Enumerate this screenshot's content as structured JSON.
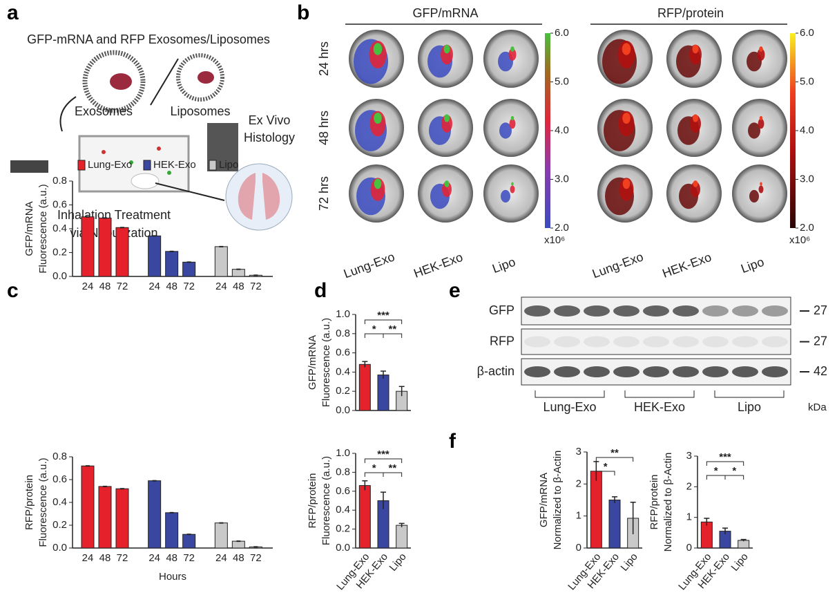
{
  "panel_labels": [
    "a",
    "b",
    "c",
    "d",
    "e",
    "f"
  ],
  "panel_a": {
    "title": "GFP-mRNA and RFP Exosomes/Liposomes",
    "exosomes": "Exosomes",
    "liposomes": "Liposomes",
    "histology": [
      "Ex Vivo",
      "Histology"
    ],
    "treatment": [
      "Inhalation Treatment",
      "via Nebulization"
    ]
  },
  "panel_b": {
    "groups": [
      "GFP/mRNA",
      "RFP/protein"
    ],
    "times": [
      "24 hrs",
      "48 hrs",
      "72 hrs"
    ],
    "samples": [
      "Lung-Exo",
      "HEK-Exo",
      "Lipo"
    ],
    "colorbar_ticks": [
      {
        "value": 2,
        "label": "2.0"
      },
      {
        "value": 3,
        "label": "3.0"
      },
      {
        "value": 4,
        "label": "4.0"
      },
      {
        "value": 5,
        "label": "5.0"
      },
      {
        "value": 6,
        "label": "6.0"
      }
    ],
    "colorbar_lim": [
      2,
      6
    ],
    "multiplier": "x10⁶"
  },
  "panel_e": {
    "rows": [
      "GFP",
      "RFP",
      "β-actin"
    ],
    "kda": [
      "27",
      "27",
      "42"
    ],
    "unit": "kDa",
    "groups": [
      "Lung-Exo",
      "HEK-Exo",
      "Lipo"
    ]
  },
  "chart_data": [
    {
      "type": "bar",
      "ylabel": [
        "GFP/mRNA",
        "Fluorescence (a.u.)"
      ],
      "categories": [
        "24",
        "48",
        "72"
      ],
      "legend": true,
      "series": [
        {
          "name": "Lung-Exo",
          "color": "#e5222b",
          "values": [
            0.5,
            0.49,
            0.41
          ]
        },
        {
          "name": "HEK-Exo",
          "color": "#3a47a0",
          "values": [
            0.34,
            0.21,
            0.12
          ]
        },
        {
          "name": "Lipo",
          "color": "#c9c9c9",
          "values": [
            0.25,
            0.06,
            0.01
          ]
        }
      ],
      "ylim": [
        0,
        0.8
      ],
      "yticks": [
        {
          "value": 0,
          "label": "0.0"
        },
        0.2,
        0.4,
        0.6,
        0.8
      ]
    },
    {
      "type": "bar",
      "ylabel": [
        "RFP/protein",
        "Fluorescence (a.u.)"
      ],
      "xlabel": "Hours",
      "categories": [
        "24",
        "48",
        "72"
      ],
      "series": [
        {
          "color": "#e5222b",
          "values": [
            0.72,
            0.54,
            0.52
          ]
        },
        {
          "color": "#3a47a0",
          "values": [
            0.59,
            0.31,
            0.12
          ]
        },
        {
          "color": "#c9c9c9",
          "values": [
            0.22,
            0.06,
            0.01
          ]
        }
      ],
      "ylim": [
        0,
        0.8
      ],
      "yticks": [
        {
          "value": 0,
          "label": "0.0"
        },
        0.2,
        0.4,
        0.6,
        0.8
      ]
    },
    {
      "type": "bar",
      "ylabel": [
        "GFP/mRNA",
        "Fluorescence (a.u.)"
      ],
      "values": [
        0.48,
        0.37,
        0.2
      ],
      "errors": [
        0.03,
        0.04,
        0.05
      ],
      "colors": [
        "#e5222b",
        "#3a47a0",
        "#c9c9c9"
      ],
      "annotations": [
        "*",
        "**",
        "***"
      ],
      "ylim": [
        0,
        1
      ],
      "yticks": [
        {
          "value": 0,
          "label": "0.0"
        },
        0.2,
        0.4,
        0.6,
        0.8,
        {
          "value": 1,
          "label": "1.0"
        }
      ]
    },
    {
      "type": "bar",
      "ylabel": [
        "RFP/protein",
        "Fluorescence (a.u.)"
      ],
      "categories": [
        "Lung-Exo",
        "HEK-Exo",
        "Lipo"
      ],
      "values": [
        0.66,
        0.5,
        0.24
      ],
      "errors": [
        0.05,
        0.09,
        0.02
      ],
      "colors": [
        "#e5222b",
        "#3a47a0",
        "#c9c9c9"
      ],
      "annotations": [
        "*",
        "**",
        "***"
      ],
      "ylim": [
        0,
        1
      ],
      "yticks": [
        {
          "value": 0,
          "label": "0.0"
        },
        0.2,
        0.4,
        0.6,
        0.8,
        {
          "value": 1,
          "label": "1.0"
        }
      ]
    },
    {
      "type": "bar",
      "ylabel": [
        "GFP/mRNA",
        "Normalized to β-Actin"
      ],
      "categories": [
        "Lung-Exo",
        "HEK-Exo",
        "Lipo"
      ],
      "values": [
        2.4,
        1.5,
        0.93
      ],
      "errors": [
        0.3,
        0.1,
        0.5
      ],
      "colors": [
        "#e5222b",
        "#3a47a0",
        "#c9c9c9"
      ],
      "annotations": [
        "*",
        "**"
      ],
      "ylim": [
        0,
        3
      ],
      "yticks": [
        0,
        1,
        2,
        3
      ]
    },
    {
      "type": "bar",
      "ylabel": [
        "RFP/protein",
        "Normalized to β-Actin"
      ],
      "categories": [
        "Lung-Exo",
        "HEK-Exo",
        "Lipo"
      ],
      "values": [
        0.85,
        0.55,
        0.25
      ],
      "errors": [
        0.12,
        0.1,
        0.03
      ],
      "colors": [
        "#e5222b",
        "#3a47a0",
        "#c9c9c9"
      ],
      "annotations": [
        "*",
        "*",
        "***"
      ],
      "ylim": [
        0,
        3
      ],
      "yticks": [
        0,
        1,
        2,
        3
      ]
    }
  ]
}
